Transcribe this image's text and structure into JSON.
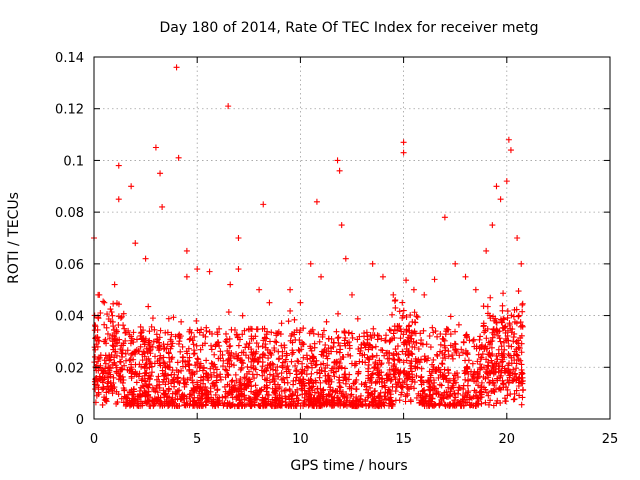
{
  "chart_data": {
    "type": "scatter",
    "title": "Day 180 of 2014, Rate Of TEC Index for receiver metg",
    "xlabel": "GPS time / hours",
    "ylabel": "ROTI / TECUs",
    "xlim": [
      0,
      25
    ],
    "ylim": [
      0,
      0.14
    ],
    "x_ticks": [
      0,
      5,
      10,
      15,
      20,
      25
    ],
    "x_tick_labels": [
      "0",
      "5",
      "10",
      "15",
      "20",
      "25"
    ],
    "y_ticks": [
      0,
      0.02,
      0.04,
      0.06,
      0.08,
      0.1,
      0.12,
      0.14
    ],
    "y_tick_labels": [
      "0",
      "0.02",
      "0.04",
      "0.06",
      "0.08",
      "0.1",
      "0.12",
      "0.14"
    ],
    "grid": true,
    "marker": "plus",
    "color": "#ff0000",
    "series": [
      {
        "name": "ROTI",
        "x": [
          0.0,
          0.2,
          0.5,
          1.0,
          1.2,
          1.2,
          1.8,
          2.0,
          2.5,
          3.0,
          3.2,
          3.3,
          4.0,
          4.1,
          4.5,
          4.5,
          5.0,
          5.6,
          6.5,
          6.6,
          7.0,
          7.0,
          8.0,
          8.2,
          8.5,
          9.5,
          10.0,
          10.5,
          10.8,
          11.0,
          11.8,
          11.9,
          12.0,
          12.2,
          12.5,
          13.5,
          14.0,
          14.5,
          15.0,
          15.0,
          15.5,
          16.0,
          16.5,
          17.0,
          17.5,
          18.0,
          18.5,
          19.0,
          19.3,
          19.5,
          19.7,
          20.0,
          20.1,
          20.2,
          20.5,
          20.7
        ],
        "y": [
          0.07,
          0.048,
          0.045,
          0.052,
          0.098,
          0.085,
          0.09,
          0.068,
          0.062,
          0.105,
          0.095,
          0.082,
          0.136,
          0.101,
          0.065,
          0.055,
          0.058,
          0.057,
          0.121,
          0.052,
          0.07,
          0.058,
          0.05,
          0.083,
          0.045,
          0.05,
          0.045,
          0.06,
          0.084,
          0.055,
          0.1,
          0.096,
          0.075,
          0.062,
          0.048,
          0.06,
          0.055,
          0.048,
          0.107,
          0.103,
          0.05,
          0.048,
          0.054,
          0.078,
          0.06,
          0.055,
          0.05,
          0.065,
          0.075,
          0.09,
          0.085,
          0.092,
          0.108,
          0.104,
          0.07,
          0.06
        ]
      }
    ]
  }
}
